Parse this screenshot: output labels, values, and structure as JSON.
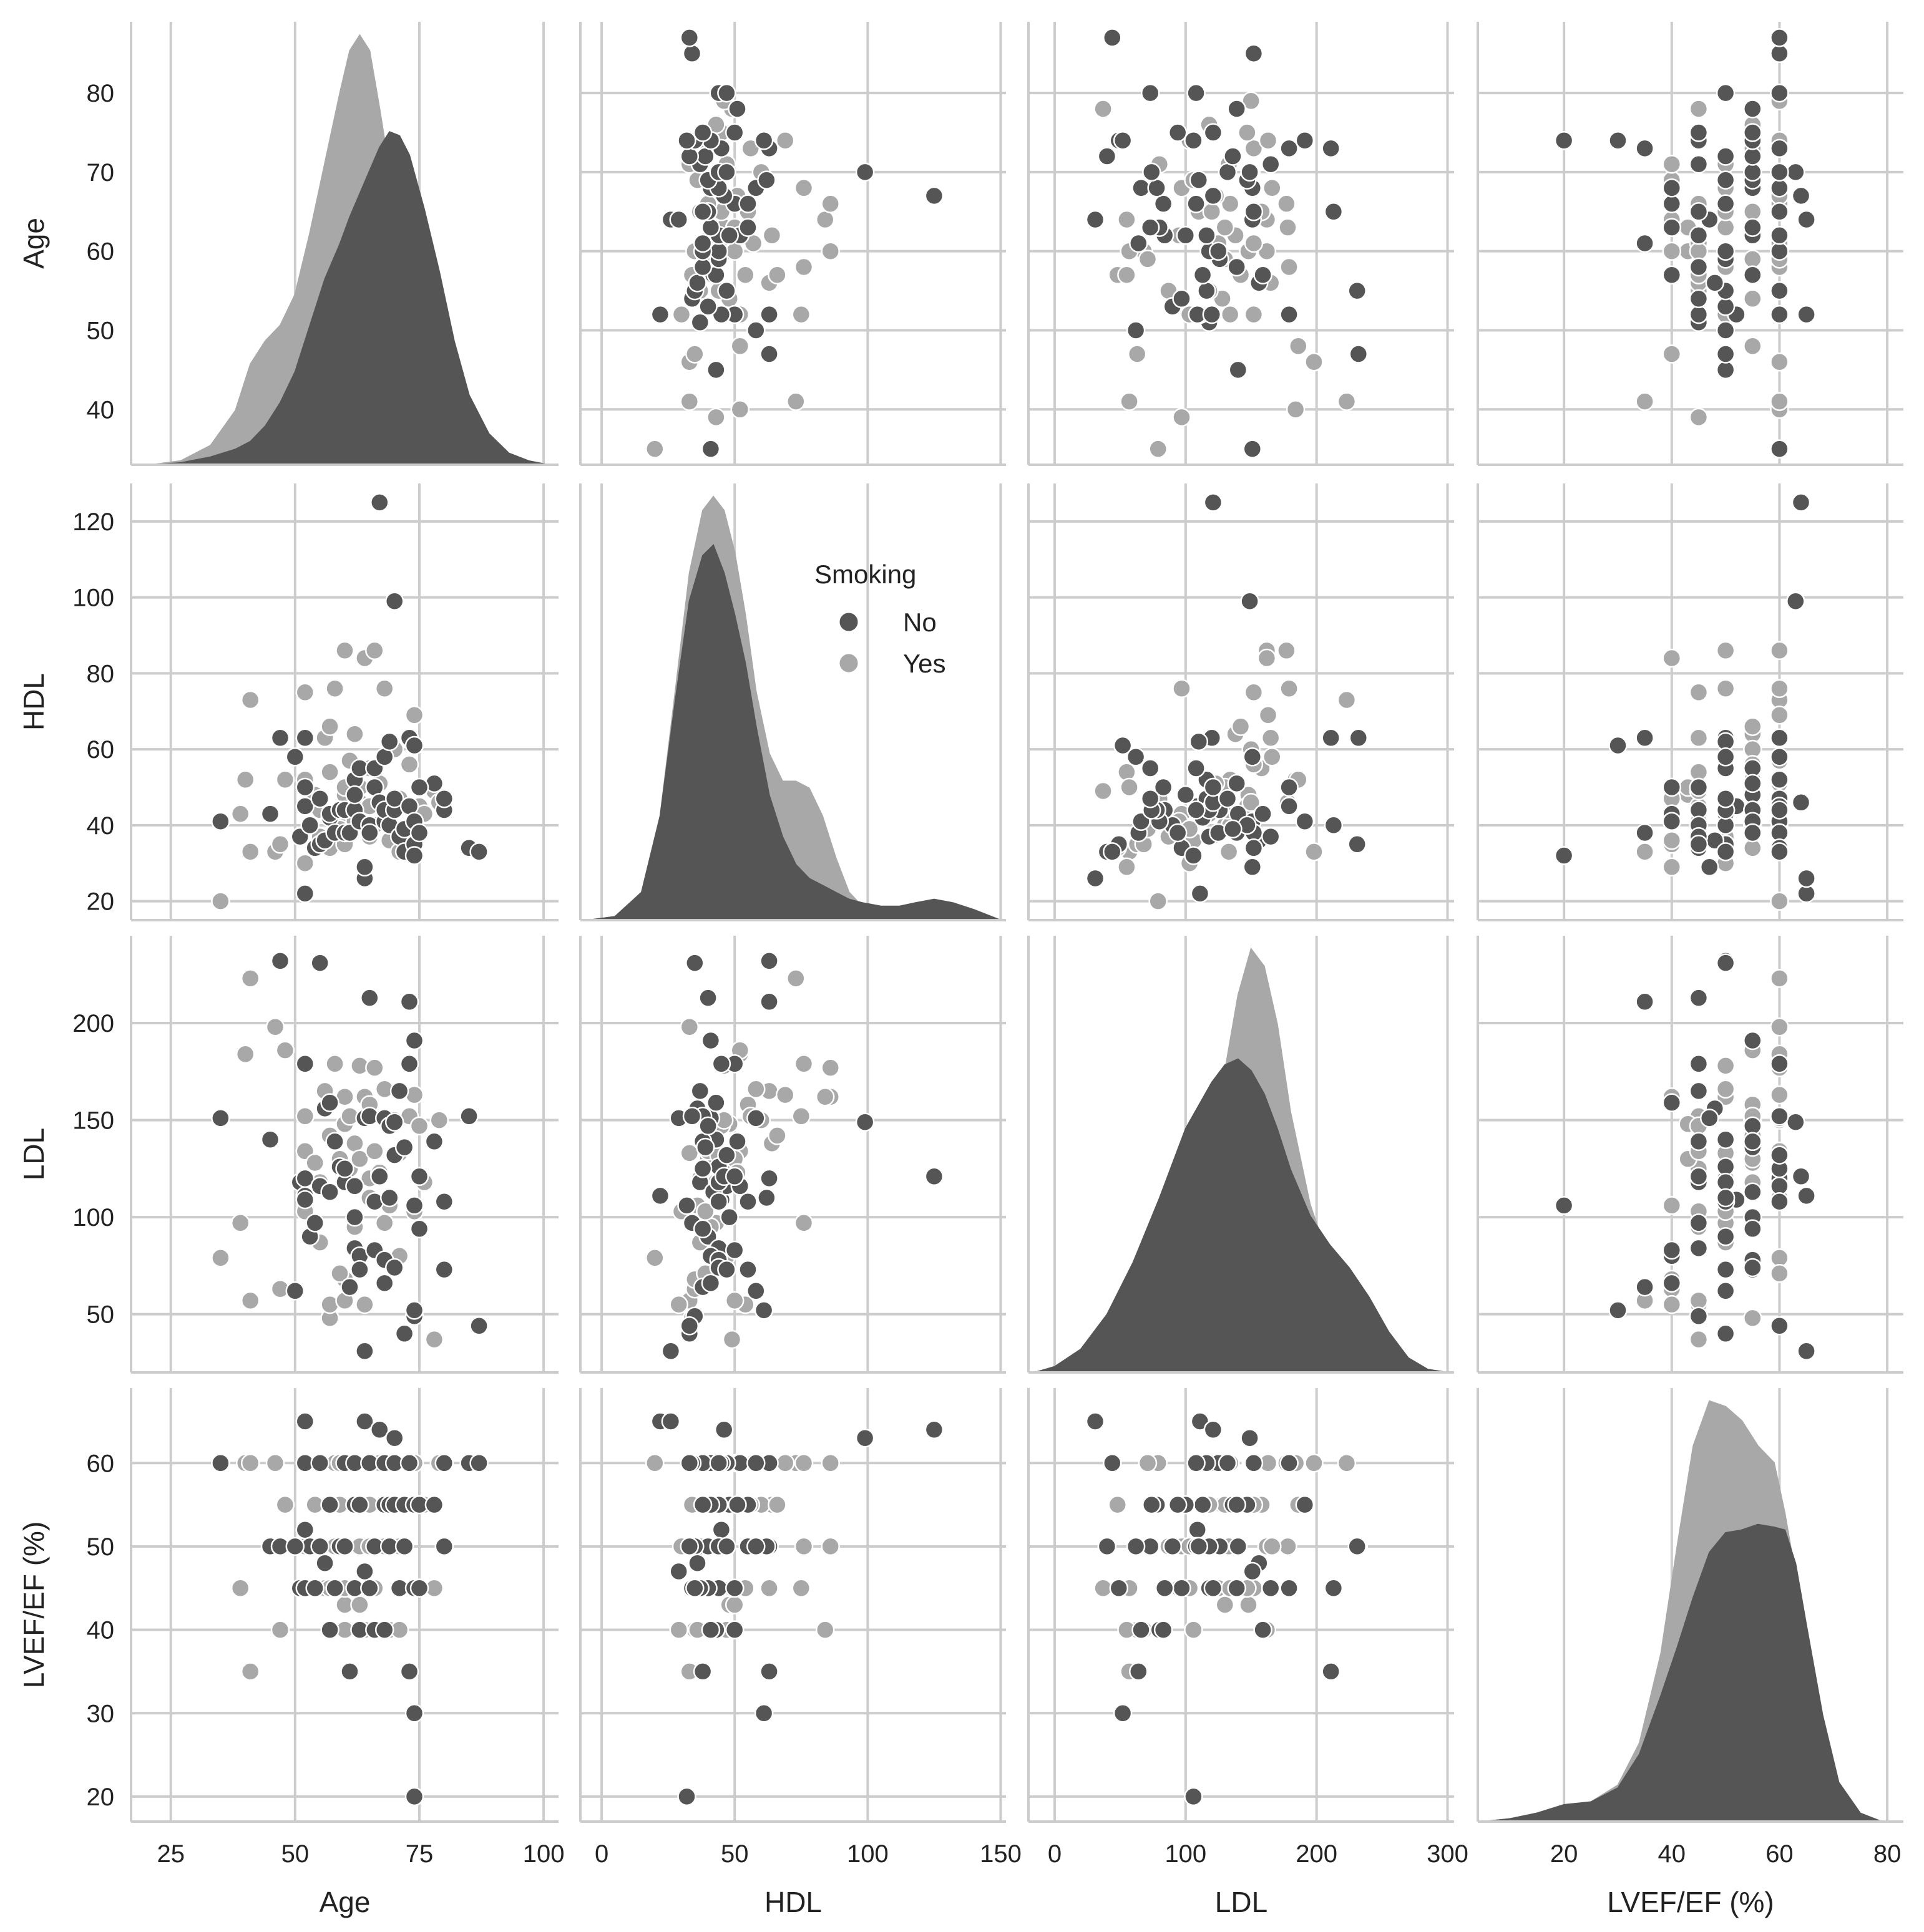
{
  "chart_data": {
    "type": "pairplot",
    "hue": "Smoking",
    "variables": [
      "Age",
      "HDL",
      "LDL",
      "LVEF/EF (%)"
    ],
    "axes": {
      "Age": {
        "lim": [
          17,
          103
        ],
        "ylim": [
          33,
          89
        ],
        "xticks": [
          25,
          50,
          75,
          100
        ],
        "yticks": [
          40,
          50,
          60,
          70,
          80
        ]
      },
      "HDL": {
        "lim": [
          -8,
          152
        ],
        "ylim": [
          15,
          130
        ],
        "xticks": [
          0,
          50,
          100,
          150
        ],
        "yticks": [
          20,
          40,
          60,
          80,
          100,
          120
        ]
      },
      "LDL": {
        "lim": [
          -20,
          305
        ],
        "ylim": [
          20,
          245
        ],
        "xticks": [
          0,
          100,
          200,
          300
        ],
        "yticks": [
          50,
          100,
          150,
          200
        ]
      },
      "LVEF/EF (%)": {
        "lim": [
          4,
          83
        ],
        "ylim": [
          17,
          69
        ],
        "xticks": [
          20,
          40,
          60,
          80
        ],
        "yticks": [
          20,
          30,
          40,
          50,
          60
        ]
      }
    },
    "legend": {
      "title": "Smoking",
      "entries": [
        {
          "label": "No",
          "color": "#555555"
        },
        {
          "label": "Yes",
          "color": "#a8a8a8"
        }
      ],
      "placement": "upper-right of HDL diagonal"
    },
    "series": [
      {
        "name": "Yes",
        "color": "#a8a8a8",
        "points": [
          [
            35,
            20,
            79,
            60
          ],
          [
            39,
            43,
            97,
            45
          ],
          [
            41,
            33,
            57,
            35
          ],
          [
            40,
            52,
            184,
            60
          ],
          [
            41,
            73,
            223,
            60
          ],
          [
            46,
            33,
            198,
            60
          ],
          [
            47,
            35,
            63,
            40
          ],
          [
            48,
            52,
            186,
            55
          ],
          [
            52,
            75,
            152,
            45
          ],
          [
            52,
            52,
            134,
            60
          ],
          [
            54,
            48,
            128,
            55
          ],
          [
            55,
            37,
            87,
            50
          ],
          [
            55,
            44,
            118,
            45
          ],
          [
            56,
            63,
            165,
            45
          ],
          [
            57,
            34,
            48,
            55
          ],
          [
            57,
            54,
            55,
            45
          ],
          [
            58,
            76,
            179,
            60
          ],
          [
            58,
            42,
            140,
            50
          ],
          [
            59,
            40,
            130,
            55
          ],
          [
            60,
            48,
            148,
            43
          ],
          [
            60,
            86,
            162,
            50
          ],
          [
            60,
            35,
            68,
            40
          ],
          [
            61,
            57,
            152,
            60
          ],
          [
            61,
            44,
            125,
            45
          ],
          [
            62,
            64,
            138,
            55
          ],
          [
            62,
            41,
            95,
            45
          ],
          [
            63,
            46,
            178,
            50
          ],
          [
            63,
            50,
            130,
            43
          ],
          [
            64,
            84,
            162,
            40
          ],
          [
            64,
            29,
            55,
            40
          ],
          [
            65,
            45,
            110,
            60
          ],
          [
            65,
            55,
            158,
            55
          ],
          [
            65,
            37,
            120,
            50
          ],
          [
            66,
            40,
            134,
            45
          ],
          [
            66,
            86,
            177,
            60
          ],
          [
            67,
            51,
            123,
            60
          ],
          [
            68,
            58,
            166,
            50
          ],
          [
            68,
            76,
            97,
            50
          ],
          [
            69,
            36,
            106,
            40
          ],
          [
            70,
            44,
            132,
            60
          ],
          [
            70,
            60,
            150,
            55
          ],
          [
            71,
            47,
            80,
            40
          ],
          [
            71,
            33,
            133,
            50
          ],
          [
            73,
            56,
            152,
            55
          ],
          [
            74,
            39,
            103,
            45
          ],
          [
            74,
            69,
            163,
            60
          ],
          [
            75,
            45,
            147,
            45
          ],
          [
            76,
            43,
            118,
            55
          ],
          [
            78,
            49,
            37,
            45
          ],
          [
            79,
            46,
            150,
            60
          ],
          [
            52,
            30,
            103,
            50
          ],
          [
            57,
            66,
            142,
            55
          ],
          [
            59,
            39,
            71,
            60
          ],
          [
            60,
            50,
            57,
            45
          ]
        ]
      },
      {
        "name": "No",
        "color": "#555555",
        "points": [
          [
            35,
            41,
            151,
            60
          ],
          [
            45,
            43,
            140,
            50
          ],
          [
            47,
            63,
            232,
            50
          ],
          [
            51,
            37,
            118,
            45
          ],
          [
            52,
            50,
            179,
            45
          ],
          [
            52,
            22,
            111,
            65
          ],
          [
            52,
            45,
            109,
            52
          ],
          [
            52,
            63,
            120,
            60
          ],
          [
            53,
            40,
            90,
            50
          ],
          [
            54,
            34,
            97,
            45
          ],
          [
            55,
            35,
            231,
            50
          ],
          [
            55,
            47,
            116,
            60
          ],
          [
            56,
            36,
            156,
            48
          ],
          [
            57,
            42,
            113,
            55
          ],
          [
            57,
            43,
            159,
            40
          ],
          [
            58,
            38,
            139,
            45
          ],
          [
            59,
            44,
            126,
            50
          ],
          [
            60,
            44,
            118,
            50
          ],
          [
            60,
            38,
            125,
            60
          ],
          [
            61,
            38,
            64,
            35
          ],
          [
            62,
            44,
            84,
            45
          ],
          [
            62,
            52,
            116,
            60
          ],
          [
            62,
            48,
            100,
            55
          ],
          [
            63,
            41,
            80,
            40
          ],
          [
            63,
            55,
            73,
            55
          ],
          [
            64,
            26,
            31,
            65
          ],
          [
            64,
            29,
            151,
            47
          ],
          [
            65,
            40,
            213,
            45
          ],
          [
            65,
            38,
            152,
            60
          ],
          [
            66,
            50,
            83,
            40
          ],
          [
            66,
            55,
            108,
            50
          ],
          [
            67,
            46,
            121,
            64
          ],
          [
            67,
            125,
            121,
            64
          ],
          [
            68,
            41,
            66,
            40
          ],
          [
            68,
            44,
            78,
            55
          ],
          [
            68,
            58,
            151,
            60
          ],
          [
            69,
            40,
            147,
            55
          ],
          [
            69,
            62,
            110,
            50
          ],
          [
            70,
            99,
            149,
            63
          ],
          [
            70,
            44,
            74,
            55
          ],
          [
            70,
            47,
            132,
            60
          ],
          [
            71,
            37,
            165,
            45
          ],
          [
            72,
            39,
            136,
            55
          ],
          [
            72,
            33,
            40,
            50
          ],
          [
            73,
            63,
            211,
            35
          ],
          [
            73,
            45,
            179,
            60
          ],
          [
            74,
            41,
            191,
            55
          ],
          [
            74,
            35,
            49,
            45
          ],
          [
            74,
            32,
            106,
            20
          ],
          [
            74,
            61,
            52,
            30
          ],
          [
            75,
            38,
            94,
            55
          ],
          [
            78,
            51,
            139,
            55
          ],
          [
            80,
            44,
            108,
            60
          ],
          [
            80,
            47,
            73,
            50
          ],
          [
            85,
            34,
            152,
            60
          ],
          [
            87,
            33,
            44,
            60
          ],
          [
            50,
            58,
            62,
            50
          ],
          [
            75,
            50,
            121,
            45
          ]
        ]
      }
    ],
    "kde": {
      "Age": {
        "grid": [
          21,
          27,
          33,
          38,
          41,
          44,
          47,
          50,
          53,
          56,
          59,
          61,
          63,
          65,
          67,
          69,
          71,
          73,
          76,
          79,
          82,
          85,
          89,
          93,
          97,
          101
        ],
        "No": [
          0,
          0.5,
          2,
          4,
          6,
          10,
          16,
          24,
          36,
          48,
          57,
          64,
          70,
          76,
          82,
          86,
          85,
          80,
          66,
          50,
          32,
          18,
          8,
          3,
          1,
          0
        ],
        "Yes": [
          0,
          1,
          5,
          14,
          26,
          32,
          36,
          44,
          60,
          78,
          96,
          107,
          111,
          107,
          92,
          76,
          60,
          46,
          30,
          20,
          12,
          6,
          3,
          1,
          0,
          0
        ]
      },
      "HDL": {
        "grid": [
          -5,
          5,
          15,
          22,
          28,
          33,
          38,
          42,
          46,
          50,
          54,
          58,
          63,
          68,
          73,
          78,
          83,
          88,
          93,
          98,
          105,
          112,
          118,
          125,
          132,
          140,
          150
        ],
        "No": [
          0,
          1,
          8,
          30,
          65,
          92,
          105,
          108,
          100,
          88,
          74,
          56,
          36,
          24,
          16,
          12,
          10,
          8,
          6,
          5,
          4,
          4,
          5,
          6,
          5,
          3,
          0
        ],
        "Yes": [
          0,
          1,
          8,
          30,
          68,
          100,
          118,
          122,
          118,
          106,
          88,
          66,
          48,
          40,
          40,
          38,
          30,
          18,
          8,
          4,
          2,
          1,
          1,
          1,
          1,
          0,
          0
        ]
      },
      "LDL": {
        "grid": [
          -15,
          0,
          20,
          40,
          60,
          80,
          100,
          120,
          130,
          140,
          150,
          160,
          170,
          180,
          195,
          210,
          225,
          240,
          255,
          270,
          285,
          300
        ],
        "No": [
          0,
          2,
          8,
          20,
          38,
          60,
          84,
          100,
          106,
          108,
          104,
          96,
          84,
          70,
          54,
          44,
          36,
          26,
          14,
          5,
          1,
          0
        ],
        "Yes": [
          0,
          1,
          4,
          10,
          22,
          38,
          58,
          82,
          104,
          130,
          146,
          140,
          120,
          90,
          58,
          38,
          24,
          12,
          5,
          2,
          0,
          0
        ]
      },
      "LVEF/EF (%)": {
        "grid": [
          5,
          10,
          15,
          20,
          25,
          30,
          34,
          38,
          41,
          44,
          47,
          50,
          53,
          56,
          59,
          61,
          63,
          65,
          68,
          71,
          75,
          79
        ],
        "No": [
          0,
          1,
          3,
          6,
          7,
          12,
          24,
          45,
          62,
          80,
          96,
          103,
          104,
          106,
          105,
          104,
          92,
          70,
          38,
          14,
          3,
          0
        ],
        "Yes": [
          0,
          1,
          3,
          6,
          7,
          13,
          28,
          60,
          98,
          134,
          150,
          148,
          143,
          134,
          128,
          110,
          88,
          62,
          30,
          10,
          2,
          0
        ]
      }
    }
  }
}
